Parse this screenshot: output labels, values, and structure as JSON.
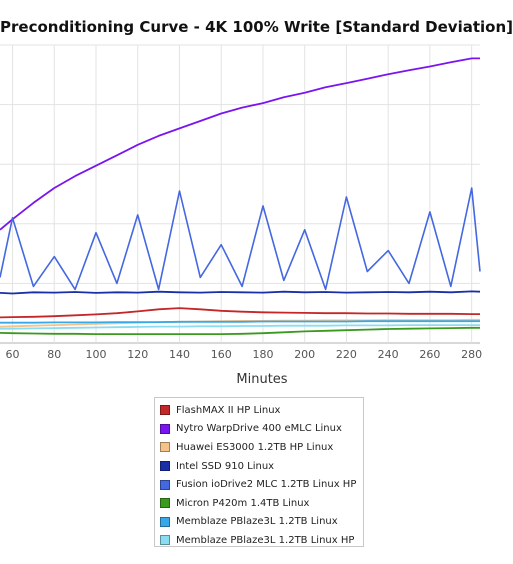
{
  "chart_data": {
    "type": "line",
    "title": "Preconditioning Curve - 4K 100% Write [Standard Deviation]",
    "xlabel": "Minutes",
    "ylabel": "",
    "x_ticks": [
      60,
      80,
      100,
      120,
      140,
      160,
      180,
      200,
      220,
      240,
      260,
      280
    ],
    "xlim": [
      54,
      284
    ],
    "ylim": [
      0,
      100
    ],
    "grid": true,
    "legend_position": "bottom",
    "x": [
      54,
      60,
      70,
      80,
      90,
      100,
      110,
      120,
      130,
      140,
      150,
      160,
      170,
      180,
      190,
      200,
      210,
      220,
      230,
      240,
      250,
      260,
      270,
      280,
      284
    ],
    "series": [
      {
        "name": "FlashMAX II HP Linux",
        "color": "#c42727",
        "values": [
          8.6,
          8.7,
          8.8,
          9.0,
          9.3,
          9.6,
          10.0,
          10.6,
          11.3,
          11.7,
          11.3,
          10.8,
          10.5,
          10.3,
          10.2,
          10.1,
          10.0,
          10.0,
          9.9,
          9.9,
          9.8,
          9.8,
          9.8,
          9.7,
          9.7
        ]
      },
      {
        "name": "Nytro WarpDrive 400 eMLC Linux",
        "color": "#7a14f0",
        "values": [
          38,
          41.5,
          47,
          52,
          56,
          59.5,
          63,
          66.5,
          69.5,
          72,
          74.5,
          77,
          79,
          80.5,
          82.5,
          84,
          85.8,
          87.2,
          88.7,
          90.2,
          91.5,
          92.8,
          94.2,
          95.5,
          95.5
        ]
      },
      {
        "name": "Huawei ES3000 1.2TB HP Linux",
        "color": "#f5c28a",
        "values": [
          5.5,
          5.6,
          5.8,
          6.0,
          6.2,
          6.4,
          6.6,
          6.8,
          7.0,
          7.1,
          7.2,
          7.3,
          7.4,
          7.4,
          7.5,
          7.5,
          7.6,
          7.6,
          7.6,
          7.7,
          7.7,
          7.7,
          7.7,
          7.8,
          7.8
        ]
      },
      {
        "name": "Intel SSD 910 Linux",
        "color": "#1a2ea8",
        "values": [
          16.8,
          16.6,
          17.0,
          16.9,
          17.1,
          16.8,
          17.0,
          16.9,
          17.2,
          17.0,
          16.9,
          17.1,
          17.0,
          16.9,
          17.2,
          17.0,
          17.1,
          16.9,
          17.0,
          17.1,
          17.0,
          17.2,
          17.0,
          17.3,
          17.2
        ]
      },
      {
        "name": "Fusion ioDrive2 MLC 1.2TB Linux HP",
        "color": "#4468e0",
        "values": [
          22,
          42,
          19,
          29,
          18,
          37,
          20,
          43,
          18,
          51,
          22,
          33,
          19,
          46,
          21,
          38,
          18,
          49,
          24,
          31,
          20,
          44,
          19,
          52,
          24
        ]
      },
      {
        "name": "Micron P420m 1.4TB Linux",
        "color": "#3a9a1e",
        "values": [
          3.4,
          3.3,
          3.2,
          3.1,
          3.1,
          3.0,
          3.0,
          3.0,
          3.0,
          3.0,
          3.0,
          3.0,
          3.1,
          3.3,
          3.6,
          3.9,
          4.1,
          4.3,
          4.5,
          4.7,
          4.8,
          4.9,
          5.0,
          5.1,
          5.1
        ]
      },
      {
        "name": "Memblaze PBlaze3L 1.2TB Linux",
        "color": "#37a8e8",
        "values": [
          6.8,
          6.8,
          6.8,
          6.9,
          6.9,
          6.9,
          7.0,
          7.0,
          7.0,
          7.1,
          7.1,
          7.1,
          7.1,
          7.2,
          7.2,
          7.2,
          7.2,
          7.2,
          7.3,
          7.3,
          7.3,
          7.3,
          7.3,
          7.3,
          7.3
        ]
      },
      {
        "name": "Memblaze PBlaze3L 1.2TB Linux HP",
        "color": "#8adcf0",
        "values": [
          4.8,
          4.8,
          4.9,
          5.0,
          5.1,
          5.2,
          5.3,
          5.4,
          5.5,
          5.5,
          5.6,
          5.6,
          5.7,
          5.7,
          5.8,
          5.8,
          5.8,
          5.9,
          5.9,
          5.9,
          6.0,
          6.0,
          6.0,
          6.0,
          6.0
        ]
      }
    ]
  }
}
